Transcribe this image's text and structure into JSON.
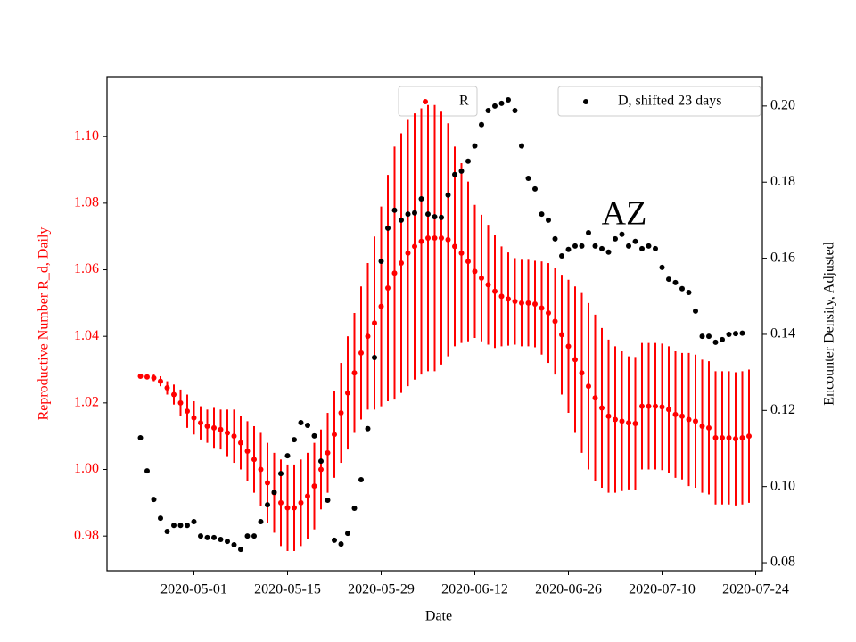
{
  "chart_data": {
    "type": "scatter",
    "xlabel": "Date",
    "ylabel": "Reproductive Number R_d, Daily",
    "y2label": "Encounter Density, Adjusted",
    "annotation": "AZ",
    "x": [
      "2020-04-23",
      "2020-04-24",
      "2020-04-25",
      "2020-04-26",
      "2020-04-27",
      "2020-04-28",
      "2020-04-29",
      "2020-04-30",
      "2020-05-01",
      "2020-05-02",
      "2020-05-03",
      "2020-05-04",
      "2020-05-05",
      "2020-05-06",
      "2020-05-07",
      "2020-05-08",
      "2020-05-09",
      "2020-05-10",
      "2020-05-11",
      "2020-05-12",
      "2020-05-13",
      "2020-05-14",
      "2020-05-15",
      "2020-05-16",
      "2020-05-17",
      "2020-05-18",
      "2020-05-19",
      "2020-05-20",
      "2020-05-21",
      "2020-05-22",
      "2020-05-23",
      "2020-05-24",
      "2020-05-25",
      "2020-05-26",
      "2020-05-27",
      "2020-05-28",
      "2020-05-29",
      "2020-05-30",
      "2020-05-31",
      "2020-06-01",
      "2020-06-02",
      "2020-06-03",
      "2020-06-04",
      "2020-06-05",
      "2020-06-06",
      "2020-06-07",
      "2020-06-08",
      "2020-06-09",
      "2020-06-10",
      "2020-06-11",
      "2020-06-12",
      "2020-06-13",
      "2020-06-14",
      "2020-06-15",
      "2020-06-16",
      "2020-06-17",
      "2020-06-18",
      "2020-06-19",
      "2020-06-20",
      "2020-06-21",
      "2020-06-22",
      "2020-06-23",
      "2020-06-24",
      "2020-06-25",
      "2020-06-26",
      "2020-06-27",
      "2020-06-28",
      "2020-06-29",
      "2020-06-30",
      "2020-07-01",
      "2020-07-02",
      "2020-07-03",
      "2020-07-04",
      "2020-07-05",
      "2020-07-06",
      "2020-07-07",
      "2020-07-08",
      "2020-07-09",
      "2020-07-10",
      "2020-07-11",
      "2020-07-12",
      "2020-07-13",
      "2020-07-14",
      "2020-07-15",
      "2020-07-16",
      "2020-07-17",
      "2020-07-18",
      "2020-07-19",
      "2020-07-20",
      "2020-07-21",
      "2020-07-22",
      "2020-07-23"
    ],
    "series": [
      {
        "name": "R",
        "color": "#ff0000",
        "axis": "y",
        "values": [
          1.028,
          1.0278,
          1.0275,
          1.0265,
          1.0245,
          1.0225,
          1.02,
          1.0175,
          1.0155,
          1.014,
          1.013,
          1.0125,
          1.012,
          1.011,
          1.01,
          1.008,
          1.0055,
          1.003,
          1.0,
          0.996,
          0.993,
          0.99,
          0.9885,
          0.9885,
          0.99,
          0.992,
          0.995,
          1.0,
          1.005,
          1.0105,
          1.017,
          1.023,
          1.029,
          1.035,
          1.04,
          1.044,
          1.049,
          1.0545,
          1.059,
          1.062,
          1.065,
          1.067,
          1.0685,
          1.0695,
          1.0695,
          1.0695,
          1.069,
          1.067,
          1.065,
          1.0625,
          1.0595,
          1.0575,
          1.0555,
          1.0535,
          1.052,
          1.0512,
          1.0505,
          1.05,
          1.05,
          1.0497,
          1.0485,
          1.047,
          1.0445,
          1.0405,
          1.037,
          1.033,
          1.029,
          1.025,
          1.0215,
          1.0185,
          1.016,
          1.015,
          1.0145,
          1.014,
          1.0138,
          1.019,
          1.019,
          1.019,
          1.0188,
          1.018,
          1.0165,
          1.016,
          1.015,
          1.0145,
          1.013,
          1.0125,
          1.0095,
          1.0095,
          1.0095,
          1.0092,
          1.0095,
          1.01
        ],
        "errors": [
          0.0005,
          0.0007,
          0.001,
          0.0015,
          0.002,
          0.003,
          0.004,
          0.005,
          0.005,
          0.005,
          0.005,
          0.006,
          0.006,
          0.007,
          0.008,
          0.008,
          0.009,
          0.01,
          0.011,
          0.012,
          0.012,
          0.013,
          0.013,
          0.013,
          0.013,
          0.013,
          0.013,
          0.012,
          0.012,
          0.013,
          0.015,
          0.017,
          0.018,
          0.02,
          0.022,
          0.026,
          0.03,
          0.034,
          0.038,
          0.039,
          0.04,
          0.04,
          0.04,
          0.04,
          0.04,
          0.038,
          0.035,
          0.03,
          0.027,
          0.024,
          0.02,
          0.019,
          0.018,
          0.017,
          0.015,
          0.014,
          0.013,
          0.013,
          0.013,
          0.013,
          0.014,
          0.015,
          0.016,
          0.018,
          0.02,
          0.022,
          0.024,
          0.025,
          0.025,
          0.024,
          0.023,
          0.022,
          0.021,
          0.02,
          0.02,
          0.019,
          0.019,
          0.019,
          0.019,
          0.019,
          0.019,
          0.019,
          0.02,
          0.02,
          0.02,
          0.02,
          0.02,
          0.02,
          0.02,
          0.02,
          0.02,
          0.02
        ]
      },
      {
        "name": "D, shifted 23 days",
        "color": "#000000",
        "axis": "y2",
        "values": [
          0.1128,
          0.1041,
          0.0966,
          0.0917,
          0.0882,
          0.0898,
          0.0898,
          0.0898,
          0.0908,
          0.087,
          0.0866,
          0.0866,
          0.0861,
          0.0856,
          0.0847,
          0.0835,
          0.087,
          0.087,
          0.0908,
          0.0952,
          0.0985,
          0.1034,
          0.1081,
          0.1123,
          0.1168,
          0.1161,
          0.1133,
          0.1067,
          0.0964,
          0.0859,
          0.0849,
          0.0877,
          0.0943,
          0.1018,
          0.1152,
          0.1339,
          0.1592,
          0.1679,
          0.1726,
          0.17,
          0.1716,
          0.1719,
          0.1756,
          0.1716,
          0.1709,
          0.1707,
          0.1766,
          0.182,
          0.1829,
          0.1855,
          0.1895,
          0.1951,
          0.1988,
          0.2,
          0.2007,
          0.2016,
          0.1988,
          0.1895,
          0.181,
          0.1782,
          0.1716,
          0.17,
          0.1651,
          0.1606,
          0.1623,
          0.1632,
          0.1632,
          0.1667,
          0.1632,
          0.1625,
          0.1616,
          0.1651,
          0.1663,
          0.1632,
          0.1644,
          0.1625,
          0.1632,
          0.1625,
          0.1576,
          0.1545,
          0.1536,
          0.152,
          0.151,
          0.1461,
          0.1395,
          0.1395,
          0.1379,
          0.1386,
          0.14,
          0.1402,
          0.1403,
          null
        ]
      }
    ],
    "xlim": [
      "2020-04-18",
      "2020-07-25"
    ],
    "xticks": [
      "2020-05-01",
      "2020-05-15",
      "2020-05-29",
      "2020-06-12",
      "2020-06-26",
      "2020-07-10",
      "2020-07-24"
    ],
    "ylim": [
      0.9696,
      1.118
    ],
    "yticks": [
      0.98,
      {
        "value": 1.0,
        "label": "1.00"
      },
      1.02,
      1.04,
      1.06,
      1.08,
      {
        "value": 1.1,
        "label": "1.10"
      }
    ],
    "y2lim": [
      0.0779,
      0.2077
    ],
    "y2ticks": [
      0.08,
      {
        "value": 0.1,
        "label": "0.10"
      },
      0.12,
      0.14,
      0.16,
      0.18,
      {
        "value": 0.2,
        "label": "0.20"
      }
    ]
  }
}
